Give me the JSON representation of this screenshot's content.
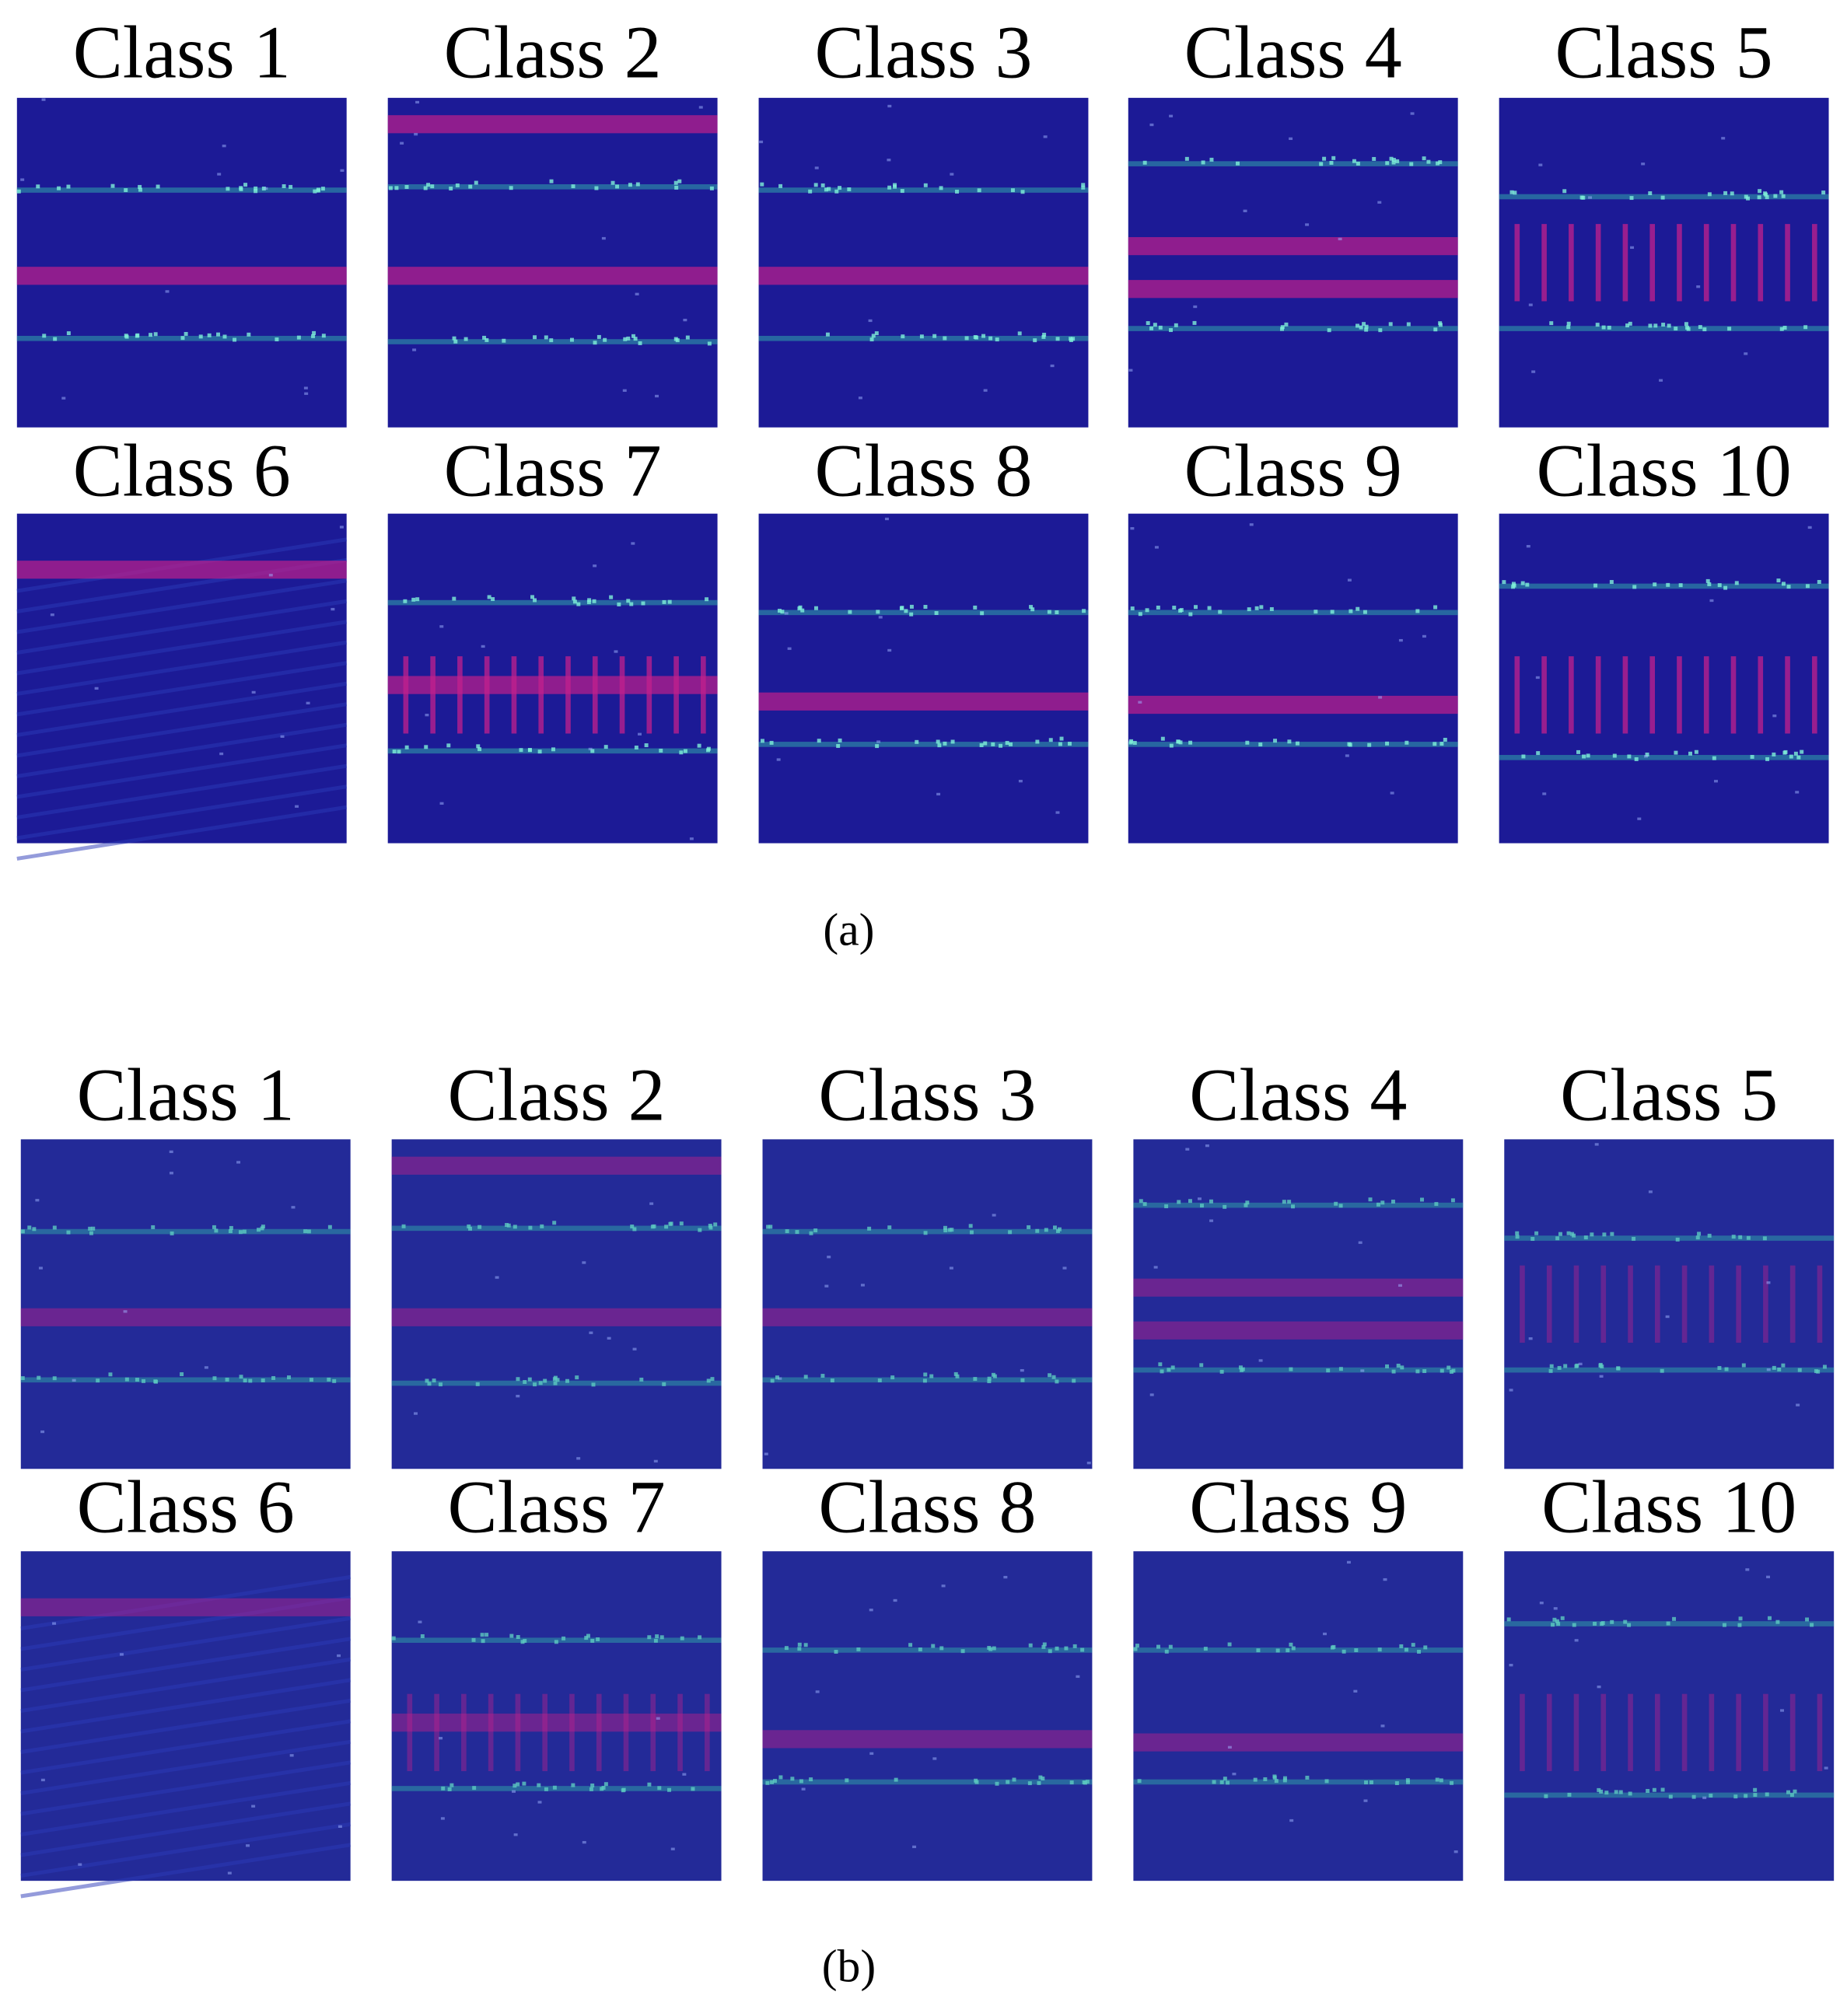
{
  "panels": [
    {
      "caption": "(a)",
      "labels": [
        "Class 1",
        "Class 2",
        "Class 3",
        "Class 4",
        "Class 5",
        "Class 6",
        "Class 7",
        "Class 8",
        "Class 9",
        "Class 10"
      ]
    },
    {
      "caption": "(b)",
      "labels": [
        "Class 1",
        "Class 2",
        "Class 3",
        "Class 4",
        "Class 5",
        "Class 6",
        "Class 7",
        "Class 8",
        "Class 9",
        "Class 10"
      ]
    }
  ]
}
